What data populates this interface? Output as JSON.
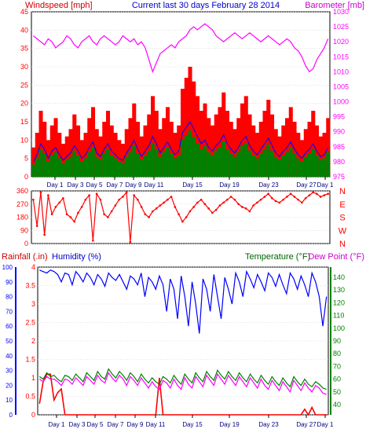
{
  "header": {
    "left": "Windspeed [mph]",
    "center": "Current last 30 days February 28 2014",
    "right": "Barometer [mb]"
  },
  "colors": {
    "wind": "#ff0000",
    "gust_avg": "#0000ff",
    "wind_avg": "#008000",
    "barometer": "#ff00ff",
    "direction": "#ff0000",
    "rain": "#ff0000",
    "humidity": "#0000ff",
    "temperature": "#008000",
    "dewpoint": "#ff00ff",
    "frame": "#000000"
  },
  "chart_data": [
    {
      "type": "area",
      "series": [
        {
          "name": "Windspeed [mph]",
          "values": [
            8,
            12,
            18,
            15,
            10,
            14,
            16,
            12,
            9,
            11,
            13,
            17,
            14,
            10,
            12,
            16,
            19,
            13,
            11,
            15,
            18,
            14,
            12,
            10,
            9,
            13,
            16,
            20,
            15,
            11,
            14,
            17,
            22,
            18,
            13,
            16,
            19,
            15,
            12,
            14,
            24,
            27,
            30,
            26,
            22,
            18,
            20,
            16,
            14,
            17,
            19,
            23,
            18,
            15,
            13,
            16,
            20,
            22,
            17,
            14,
            12,
            15,
            18,
            21,
            17,
            13,
            11,
            14,
            16,
            19,
            15,
            12,
            10,
            13,
            15,
            18,
            14,
            11,
            12,
            16
          ]
        },
        {
          "name": "Barometer [mb]",
          "values": [
            1022,
            1021,
            1020,
            1019,
            1021,
            1020,
            1018,
            1019,
            1020,
            1022,
            1021,
            1019,
            1018,
            1020,
            1021,
            1022,
            1020,
            1019,
            1021,
            1022,
            1021,
            1020,
            1019,
            1020,
            1022,
            1021,
            1020,
            1021,
            1019,
            1020,
            1018,
            1014,
            1010,
            1013,
            1016,
            1017,
            1018,
            1019,
            1018,
            1020,
            1021,
            1022,
            1024,
            1025,
            1024,
            1025,
            1026,
            1025,
            1024,
            1022,
            1021,
            1020,
            1021,
            1022,
            1023,
            1022,
            1021,
            1022,
            1023,
            1022,
            1021,
            1020,
            1021,
            1022,
            1021,
            1020,
            1019,
            1020,
            1021,
            1020,
            1018,
            1017,
            1015,
            1012,
            1010,
            1011,
            1014,
            1016,
            1018,
            1021
          ]
        }
      ],
      "x_ticks": [
        "Day 1",
        "Day 3",
        "Day 5",
        "Day 7",
        "Day 9",
        "Day 11",
        "Day 15",
        "Day 19",
        "Day 23",
        "Day 27",
        "Day 1"
      ],
      "y_ticks_left": [
        "0",
        "5",
        "10",
        "15",
        "20",
        "25",
        "30",
        "35",
        "40",
        "45"
      ],
      "y_ticks_right": [
        "975",
        "980",
        "985",
        "990",
        "995",
        "1000",
        "1005",
        "1010",
        "1015",
        "1020",
        "1025",
        "1030"
      ],
      "ylim_left": [
        0,
        45
      ],
      "ylim_right": [
        975,
        1030
      ],
      "grid": true
    },
    {
      "type": "scatter",
      "series": [
        {
          "name": "Wind direction",
          "values": [
            300,
            120,
            350,
            60,
            330,
            200,
            250,
            280,
            310,
            200,
            180,
            150,
            210,
            250,
            300,
            330,
            20,
            340,
            300,
            200,
            180,
            220,
            260,
            300,
            320,
            350,
            10,
            330,
            300,
            250,
            200,
            180,
            220,
            240,
            260,
            280,
            300,
            320,
            250,
            200,
            150,
            180,
            220,
            250,
            280,
            300,
            270,
            240,
            210,
            230,
            260,
            280,
            300,
            320,
            300,
            270,
            250,
            240,
            220,
            260,
            280,
            300,
            320,
            340,
            310,
            290,
            280,
            300,
            320,
            340,
            320,
            300,
            280,
            310,
            330,
            350,
            340,
            320,
            330,
            340
          ]
        }
      ],
      "y_ticks_left": [
        "0",
        "90",
        "180",
        "270",
        "360"
      ],
      "y_ticks_right": [
        "N",
        "W",
        "S",
        "E",
        "N"
      ],
      "ylim": [
        0,
        360
      ],
      "grid": true
    },
    {
      "type": "line",
      "labels": {
        "rainfall": "Rainfall (.in)",
        "humidity": "Humidity (%)",
        "temperature": "Temperature (°F)",
        "dewpoint": "Dew Point (°F)"
      },
      "series": [
        {
          "name": "Rainfall (.in)",
          "values": [
            0.3,
            0.9,
            1.1,
            1.1,
            0.4,
            0.6,
            0.7,
            0,
            0,
            0,
            0,
            0,
            0,
            0,
            0,
            0,
            0,
            0,
            0,
            0,
            0,
            0,
            0,
            0,
            0,
            0,
            0,
            0,
            0,
            0,
            0,
            0,
            0,
            1.0,
            0,
            0,
            0,
            0,
            0,
            0,
            0,
            0,
            0,
            0,
            0,
            0,
            0,
            0,
            0,
            0,
            0,
            0,
            0,
            0,
            0,
            0,
            0,
            0,
            0,
            0,
            0,
            0,
            0,
            0,
            0,
            0,
            0,
            0,
            0,
            0,
            0,
            0,
            0,
            0.15,
            0,
            0.2,
            0,
            0,
            0,
            0
          ]
        },
        {
          "name": "Humidity (%)",
          "values": [
            98,
            97,
            96,
            98,
            97,
            95,
            90,
            96,
            95,
            88,
            97,
            94,
            90,
            96,
            93,
            88,
            95,
            92,
            87,
            96,
            93,
            91,
            95,
            90,
            85,
            94,
            92,
            88,
            96,
            80,
            93,
            90,
            85,
            94,
            88,
            70,
            92,
            85,
            65,
            94,
            80,
            60,
            90,
            75,
            55,
            92,
            85,
            70,
            95,
            80,
            65,
            93,
            85,
            75,
            96,
            90,
            80,
            97,
            92,
            86,
            95,
            90,
            84,
            96,
            93,
            87,
            95,
            88,
            82,
            96,
            92,
            85,
            94,
            88,
            80,
            96,
            90,
            80,
            60,
            80
          ]
        },
        {
          "name": "Temperature (°F)",
          "values": [
            62,
            60,
            65,
            62,
            63,
            60,
            58,
            63,
            62,
            59,
            64,
            61,
            58,
            65,
            62,
            59,
            66,
            62,
            60,
            68,
            64,
            61,
            66,
            63,
            59,
            65,
            62,
            58,
            64,
            60,
            57,
            61,
            58,
            56,
            62,
            60,
            57,
            63,
            59,
            56,
            64,
            60,
            57,
            65,
            61,
            58,
            66,
            62,
            59,
            67,
            63,
            60,
            66,
            62,
            59,
            65,
            61,
            58,
            64,
            60,
            57,
            63,
            59,
            56,
            62,
            58,
            55,
            61,
            57,
            54,
            62,
            58,
            55,
            60,
            56,
            54,
            58,
            56,
            53,
            52
          ]
        },
        {
          "name": "Dew Point (°F)",
          "values": [
            60,
            58,
            62,
            60,
            60,
            58,
            55,
            60,
            59,
            56,
            61,
            58,
            55,
            62,
            59,
            56,
            63,
            59,
            57,
            65,
            61,
            58,
            63,
            60,
            55,
            62,
            59,
            55,
            61,
            57,
            53,
            58,
            54,
            52,
            59,
            57,
            53,
            60,
            55,
            52,
            61,
            56,
            53,
            62,
            58,
            54,
            63,
            59,
            55,
            64,
            60,
            56,
            63,
            59,
            55,
            62,
            58,
            54,
            61,
            57,
            53,
            60,
            55,
            52,
            59,
            55,
            51,
            58,
            54,
            50,
            59,
            55,
            51,
            57,
            53,
            50,
            55,
            53,
            49,
            48
          ]
        }
      ],
      "x_ticks": [
        "Day 1",
        "Day 3",
        "Day 5",
        "Day 7",
        "Day 9",
        "Day 11",
        "Day 15",
        "Day 19",
        "Day 23",
        "Day 27",
        "Day 1"
      ],
      "y_ticks_rain": [
        "0",
        "0.5",
        "1",
        "1.5",
        "2",
        "2.5",
        "3",
        "3.5",
        "4"
      ],
      "y_ticks_humidity": [
        "0",
        "10",
        "20",
        "30",
        "40",
        "50",
        "60",
        "70",
        "80",
        "90",
        "100"
      ],
      "y_ticks_temp": [
        "40",
        "50",
        "60",
        "70",
        "80",
        "90",
        "100",
        "110",
        "120",
        "130",
        "140"
      ],
      "ylim_rain": [
        0,
        4
      ],
      "ylim_humidity": [
        0,
        100
      ],
      "ylim_temp": [
        32,
        148
      ],
      "grid": true
    }
  ]
}
